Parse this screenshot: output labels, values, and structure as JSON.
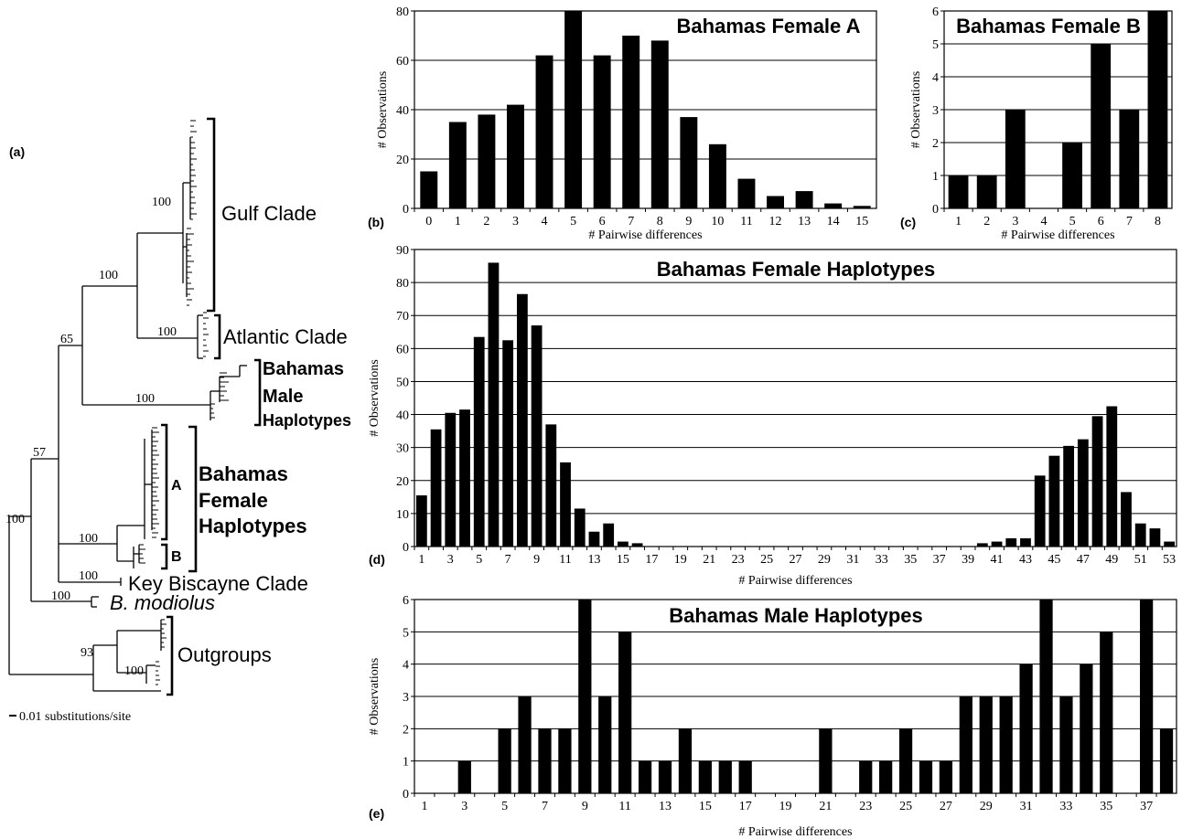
{
  "tree": {
    "panel_label": "(a)",
    "supports": [
      "100",
      "100",
      "100",
      "65",
      "100",
      "57",
      "100",
      "100",
      "100",
      "100",
      "93",
      "100"
    ],
    "clades": {
      "gulf": "Gulf Clade",
      "atlantic": "Atlantic Clade",
      "male": [
        "Bahamas",
        "Male",
        "Haplotypes"
      ],
      "female": [
        "Bahamas",
        "Female",
        "Haplotypes"
      ],
      "sub_a": "A",
      "sub_b": "B",
      "key_biscayne": "Key Biscayne Clade",
      "modiolus": "B. modiolus",
      "outgroups": "Outgroups"
    },
    "scale_label": "0.01 substitutions/site"
  },
  "chart_data": [
    {
      "id": "b",
      "panel_label": "(b)",
      "type": "bar",
      "title": "Bahamas Female A",
      "xlabel": "# Pairwise differences",
      "ylabel": "# Observations",
      "ylim": [
        0,
        80
      ],
      "yticks": [
        0,
        20,
        40,
        60,
        80
      ],
      "categories": [
        0,
        1,
        2,
        3,
        4,
        5,
        6,
        7,
        8,
        9,
        10,
        11,
        12,
        13,
        14,
        15
      ],
      "x_tick_labels": [
        "0",
        "1",
        "2",
        "3",
        "4",
        "5",
        "6",
        "7",
        "8",
        "9",
        "10",
        "11",
        "12",
        "13",
        "14",
        "15"
      ],
      "values": [
        15,
        35,
        38,
        42,
        62,
        80,
        62,
        70,
        68,
        37,
        26,
        12,
        5,
        7,
        2,
        1
      ],
      "grid": true
    },
    {
      "id": "c",
      "panel_label": "(c)",
      "type": "bar",
      "title": "Bahamas Female B",
      "xlabel": "# Pairwise differences",
      "ylabel": "# Observations",
      "ylim": [
        0,
        6
      ],
      "yticks": [
        0,
        1,
        2,
        3,
        4,
        5,
        6
      ],
      "categories": [
        1,
        2,
        3,
        4,
        5,
        6,
        7,
        8
      ],
      "x_tick_labels": [
        "1",
        "2",
        "3",
        "4",
        "5",
        "6",
        "7",
        "8"
      ],
      "values": [
        1,
        1,
        3,
        0,
        2,
        5,
        3,
        6
      ],
      "grid": true
    },
    {
      "id": "d",
      "panel_label": "(d)",
      "type": "bar",
      "title": "Bahamas Female Haplotypes",
      "xlabel": "# Pairwise differences",
      "ylabel": "# Observations",
      "ylim": [
        0,
        90
      ],
      "yticks": [
        0,
        10,
        20,
        30,
        40,
        50,
        60,
        70,
        80,
        90
      ],
      "categories": [
        1,
        2,
        3,
        4,
        5,
        6,
        7,
        8,
        9,
        10,
        11,
        12,
        13,
        14,
        15,
        16,
        17,
        18,
        19,
        20,
        21,
        22,
        23,
        24,
        25,
        26,
        27,
        28,
        29,
        30,
        31,
        32,
        33,
        34,
        35,
        36,
        37,
        38,
        39,
        40,
        41,
        42,
        43,
        44,
        45,
        46,
        47,
        48,
        49,
        50,
        51,
        52,
        53
      ],
      "x_tick_labels": [
        "1",
        "3",
        "5",
        "7",
        "9",
        "11",
        "13",
        "15",
        "17",
        "19",
        "21",
        "23",
        "25",
        "27",
        "29",
        "31",
        "33",
        "35",
        "37",
        "39",
        "41",
        "43",
        "45",
        "47",
        "49",
        "51",
        "53"
      ],
      "values": [
        15.5,
        35.5,
        40.5,
        41.5,
        63.5,
        86,
        62.5,
        76.5,
        67,
        37,
        25.5,
        11.5,
        4.5,
        7,
        1.5,
        1,
        0,
        0,
        0,
        0,
        0,
        0,
        0,
        0,
        0,
        0,
        0,
        0,
        0,
        0,
        0,
        0,
        0,
        0,
        0,
        0,
        0,
        0,
        0,
        1,
        1.5,
        2.5,
        2.5,
        21.5,
        27.5,
        30.5,
        32.5,
        39.5,
        42.5,
        16.5,
        7,
        5.5,
        1.5
      ],
      "grid": true
    },
    {
      "id": "e",
      "panel_label": "(e)",
      "type": "bar",
      "title": "Bahamas Male Haplotypes",
      "xlabel": "# Pairwise differences",
      "ylabel": "# Observations",
      "ylim": [
        0,
        6
      ],
      "yticks": [
        0,
        1,
        2,
        3,
        4,
        5,
        6
      ],
      "categories": [
        1,
        2,
        3,
        4,
        5,
        6,
        7,
        8,
        9,
        10,
        11,
        12,
        13,
        14,
        15,
        16,
        17,
        18,
        19,
        20,
        21,
        22,
        23,
        24,
        25,
        26,
        27,
        28,
        29,
        30,
        31,
        32,
        33,
        34,
        35,
        36,
        37,
        38
      ],
      "x_tick_labels": [
        "1",
        "3",
        "5",
        "7",
        "9",
        "11",
        "13",
        "15",
        "17",
        "19",
        "21",
        "23",
        "25",
        "27",
        "29",
        "31",
        "33",
        "35",
        "37"
      ],
      "values": [
        0,
        0,
        1,
        0,
        2,
        3,
        2,
        2,
        6,
        3,
        5,
        1,
        1,
        2,
        1,
        1,
        1,
        0,
        0,
        0,
        2,
        0,
        1,
        1,
        2,
        1,
        1,
        3,
        3,
        3,
        4,
        6,
        3,
        4,
        5,
        0,
        6,
        2
      ],
      "grid": true
    }
  ]
}
